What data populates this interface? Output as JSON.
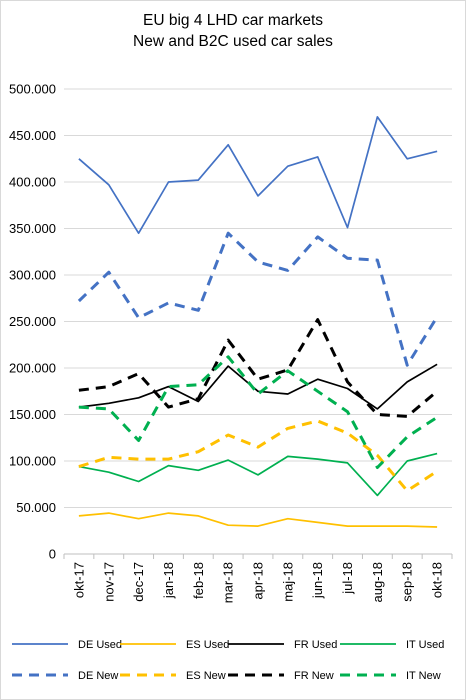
{
  "chart_data": {
    "type": "line",
    "title": "EU big 4 LHD car markets",
    "subtitle": "New and B2C used car sales",
    "xlabel": "",
    "ylabel": "",
    "ylim": [
      0,
      500000
    ],
    "yticks": [
      0,
      50000,
      100000,
      150000,
      200000,
      250000,
      300000,
      350000,
      400000,
      450000,
      500000
    ],
    "ytick_labels": [
      "0",
      "50.000",
      "100.000",
      "150.000",
      "200.000",
      "250.000",
      "300.000",
      "350.000",
      "400.000",
      "450.000",
      "500.000"
    ],
    "grid": "horizontal",
    "legend_position": "bottom",
    "categories": [
      "okt-17",
      "nov-17",
      "dec-17",
      "jan-18",
      "feb-18",
      "mar-18",
      "apr-18",
      "maj-18",
      "jun-18",
      "jul-18",
      "aug-18",
      "sep-18",
      "okt-18"
    ],
    "series": [
      {
        "name": "DE Used",
        "color": "#4472c4",
        "style": "solid",
        "values": [
          425000,
          397000,
          345000,
          400000,
          402000,
          440000,
          385000,
          417000,
          427000,
          351000,
          470000,
          425000,
          433000
        ]
      },
      {
        "name": "ES Used",
        "color": "#ffc000",
        "style": "solid",
        "values": [
          41000,
          44000,
          38000,
          44000,
          41000,
          31000,
          30000,
          38000,
          34000,
          30000,
          30000,
          30000,
          29000
        ]
      },
      {
        "name": "FR Used",
        "color": "#000000",
        "style": "solid",
        "values": [
          158000,
          162000,
          168000,
          180000,
          164000,
          202000,
          175000,
          172000,
          188000,
          178000,
          156000,
          185000,
          204000
        ]
      },
      {
        "name": "IT Used",
        "color": "#00b050",
        "style": "solid",
        "values": [
          94000,
          88000,
          78000,
          95000,
          90000,
          101000,
          85000,
          105000,
          102000,
          98000,
          63000,
          100000,
          108000
        ]
      },
      {
        "name": "DE New",
        "color": "#4472c4",
        "style": "dashed",
        "values": [
          272000,
          303000,
          254000,
          270000,
          262000,
          345000,
          314000,
          305000,
          341000,
          318000,
          316000,
          203000,
          255000
        ]
      },
      {
        "name": "ES New",
        "color": "#ffc000",
        "style": "dashed",
        "values": [
          94000,
          104000,
          102000,
          102000,
          110000,
          128000,
          115000,
          135000,
          143000,
          130000,
          106000,
          68000,
          89000
        ]
      },
      {
        "name": "FR New",
        "color": "#000000",
        "style": "dashed",
        "values": [
          176000,
          180000,
          194000,
          158000,
          167000,
          230000,
          188000,
          198000,
          252000,
          185000,
          150000,
          148000,
          175000
        ]
      },
      {
        "name": "IT New",
        "color": "#00b050",
        "style": "dashed",
        "values": [
          158000,
          156000,
          122000,
          180000,
          182000,
          212000,
          172000,
          197000,
          175000,
          153000,
          93000,
          126000,
          147000
        ]
      }
    ]
  }
}
